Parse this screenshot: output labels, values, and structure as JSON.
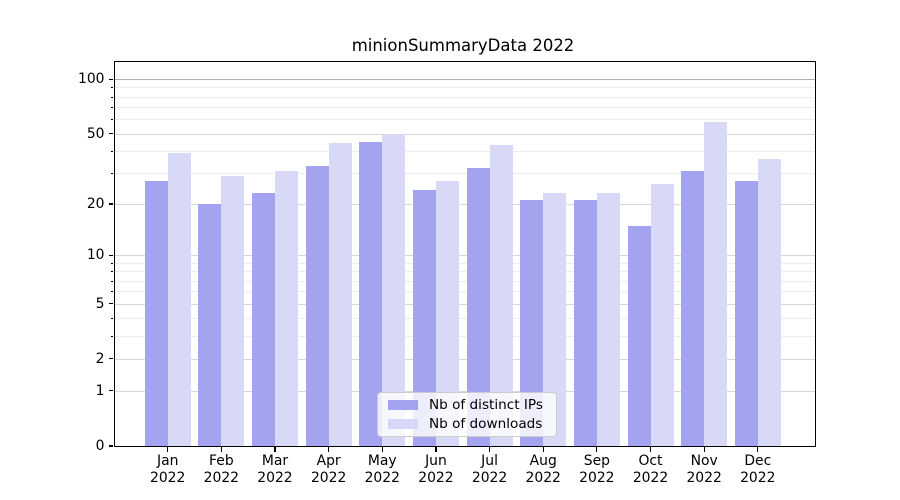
{
  "chart_data": {
    "type": "bar",
    "title": "minionSummaryData 2022",
    "categories": [
      "Jan 2022",
      "Feb 2022",
      "Mar 2022",
      "Apr 2022",
      "May 2022",
      "Jun 2022",
      "Jul 2022",
      "Aug 2022",
      "Sep 2022",
      "Oct 2022",
      "Nov 2022",
      "Dec 2022"
    ],
    "series": [
      {
        "name": "Nb of distinct IPs",
        "color": "#a3a3f0",
        "values": [
          27,
          20,
          23,
          33,
          45,
          24,
          32,
          21,
          21,
          15,
          31,
          27
        ]
      },
      {
        "name": "Nb of downloads",
        "color": "#d8d8f7",
        "values": [
          39,
          29,
          31,
          44,
          50,
          27,
          43,
          23,
          23,
          26,
          58,
          36
        ]
      }
    ],
    "y_axis": {
      "scale": "log1p",
      "ticks": [
        0,
        1,
        2,
        5,
        10,
        20,
        50,
        100
      ],
      "minor_ticks": [
        3,
        4,
        6,
        7,
        8,
        9,
        30,
        40,
        60,
        70,
        80,
        90
      ],
      "range": [
        0,
        124
      ]
    },
    "xlabel": "",
    "ylabel": "",
    "grid": true,
    "legend": {
      "position": "lower center",
      "entries": [
        "Nb of distinct IPs",
        "Nb of downloads"
      ]
    }
  },
  "colors": {
    "background": "#ffffff",
    "axis": "#000000",
    "major_grid": "#d7d7d7",
    "top_grid": "#b0b0b0",
    "minor_grid": "#ededed",
    "legend_border": "#cccccc"
  }
}
